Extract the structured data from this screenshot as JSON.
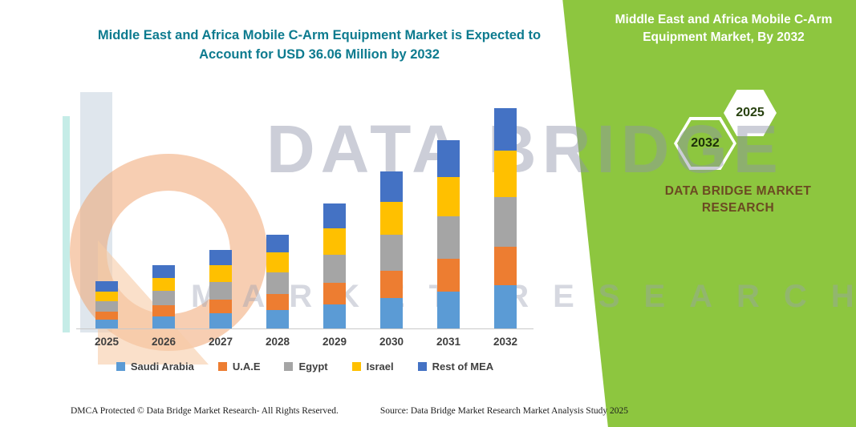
{
  "page": {
    "title_line1": "Middle East and Africa Mobile C-Arm Equipment Market is Expected to",
    "title_line2": "Account for USD 36.06 Million by 2032",
    "watermark_line1": "DATA BRIDGE",
    "watermark_line2": "MARKET RESEARCH",
    "footer": {
      "dmca": "DMCA Protected © Data Bridge Market Research-  All Rights Reserved.",
      "source": "Source: Data Bridge Market Research  Market Analysis Study 2025"
    }
  },
  "side_panel": {
    "title": "Middle East and Africa Mobile C-Arm Equipment Market, By 2032",
    "hex_left_label": "2032",
    "hex_right_label": "2025",
    "brand_line1": "DATA BRIDGE MARKET",
    "brand_line2": "RESEARCH",
    "green": "#8dc63f"
  },
  "chart_data": {
    "type": "bar",
    "stacked": true,
    "title": "Middle East and Africa Mobile C-Arm Equipment Market is Expected to Account for USD 36.06 Million by 2032",
    "categories": [
      "2025",
      "2026",
      "2027",
      "2028",
      "2029",
      "2030",
      "2031",
      "2032"
    ],
    "series": [
      {
        "name": "Saudi Arabia",
        "color": "#5b9bd5",
        "values": [
          1.5,
          2.0,
          2.5,
          3.0,
          4.0,
          5.0,
          6.0,
          7.1
        ]
      },
      {
        "name": "U.A.E",
        "color": "#ed7d31",
        "values": [
          1.3,
          1.8,
          2.2,
          2.7,
          3.5,
          4.5,
          5.4,
          6.3
        ]
      },
      {
        "name": "Egypt",
        "color": "#a5a5a5",
        "values": [
          1.7,
          2.3,
          2.9,
          3.5,
          4.6,
          5.8,
          6.9,
          8.1
        ]
      },
      {
        "name": "Israel",
        "color": "#ffc000",
        "values": [
          1.6,
          2.2,
          2.7,
          3.2,
          4.3,
          5.4,
          6.5,
          7.6
        ]
      },
      {
        "name": "Rest of MEA",
        "color": "#4472c4",
        "values": [
          1.6,
          2.0,
          2.5,
          3.0,
          4.0,
          5.0,
          6.0,
          7.0
        ]
      }
    ],
    "totals_by_year": [
      7.7,
      10.3,
      12.8,
      15.4,
      20.4,
      25.7,
      30.8,
      36.06
    ],
    "value_unit": "USD Million",
    "xlabel": "",
    "ylabel": "",
    "ylim": [
      0,
      38
    ],
    "grid": false,
    "legend_position": "bottom"
  }
}
